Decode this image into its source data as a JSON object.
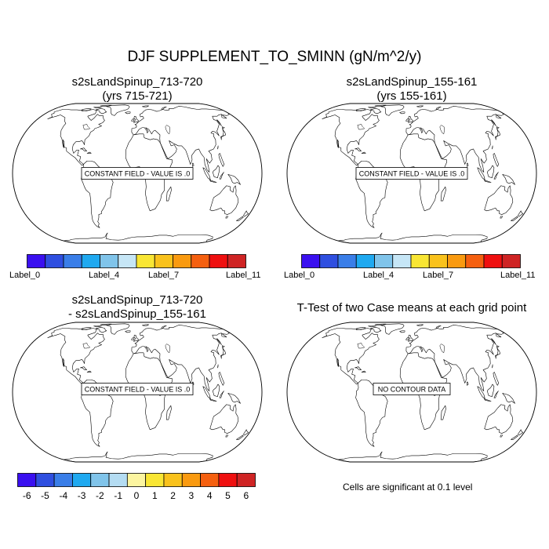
{
  "title": "DJF SUPPLEMENT_TO_SMINN (gN/m^2/y)",
  "panels": [
    {
      "title_line1": "s2sLandSpinup_713-720",
      "title_line2": "(yrs 715-721)",
      "message": "CONSTANT FIELD - VALUE IS .0"
    },
    {
      "title_line1": "s2sLandSpinup_155-161",
      "title_line2": "(yrs 155-161)",
      "message": "CONSTANT FIELD - VALUE IS .0"
    },
    {
      "title_line1": "s2sLandSpinup_713-720",
      "title_line2": "- s2sLandSpinup_155-161",
      "message": "CONSTANT FIELD - VALUE IS .0"
    },
    {
      "title_line1": "T-Test of two Case means at each grid point",
      "title_line2": "",
      "message": "NO CONTOUR DATA"
    }
  ],
  "colorbar_case": {
    "colors": [
      "#3a10f0",
      "#2f4fe0",
      "#3a7ee8",
      "#1fa9f0",
      "#80c4ea",
      "#c6e6f6",
      "#f9e634",
      "#f9c21c",
      "#f99a10",
      "#f56010",
      "#ef1010",
      "#cf2424"
    ],
    "labels": [
      "Label_0",
      "Label_4",
      "Label_7",
      "Label_11"
    ]
  },
  "colorbar_diff": {
    "colors": [
      "#3a10f0",
      "#2f4fe0",
      "#3a7ee8",
      "#1fa9f0",
      "#80c4ea",
      "#b4dcf2",
      "#fcf5a0",
      "#f9e634",
      "#f9c21c",
      "#f99a10",
      "#f56010",
      "#ef1010",
      "#cf2424"
    ],
    "labels": [
      "-6",
      "-5",
      "-4",
      "-3",
      "-2",
      "-1",
      "0",
      "1",
      "2",
      "3",
      "4",
      "5",
      "6"
    ]
  },
  "footnote": "Cells are significant at 0.1 level"
}
